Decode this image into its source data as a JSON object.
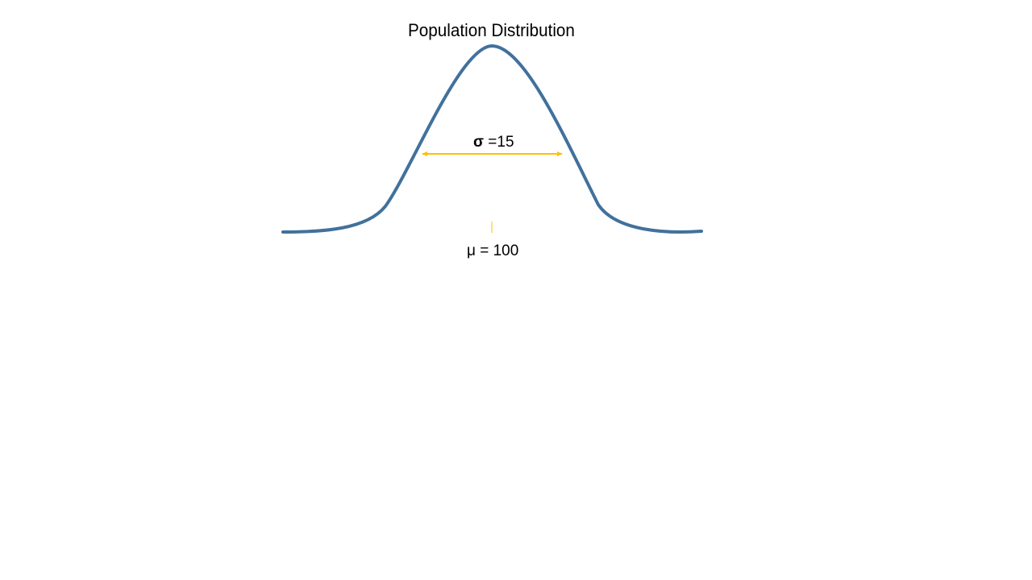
{
  "diagram": {
    "title": "Population Distribution",
    "sigma": {
      "symbol": "σ",
      "value_text": " =15"
    },
    "mu_label": "μ = 100"
  },
  "colors": {
    "curve": "#41719c",
    "sigma_arrow": "#ffc000",
    "mean_tick": "#ffc000",
    "text": "#000000",
    "background": "#ffffff"
  }
}
